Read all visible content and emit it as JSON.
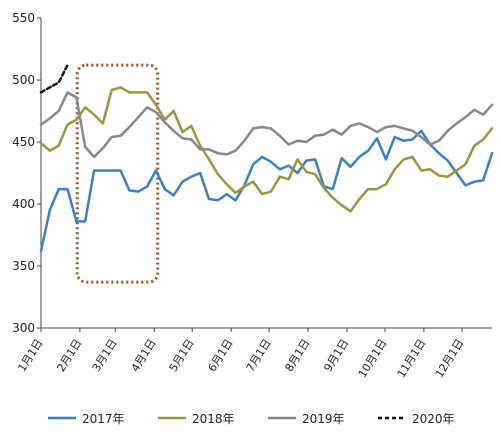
{
  "chart_data": {
    "type": "line",
    "title": "",
    "xlabel": "",
    "ylabel": "",
    "ylim": [
      300,
      550
    ],
    "yticks": [
      300,
      350,
      400,
      450,
      500,
      550
    ],
    "x_range": [
      1,
      52
    ],
    "x_ticks": [
      {
        "label": "1月1日",
        "week": 1
      },
      {
        "label": "2月1日",
        "week": 5.4
      },
      {
        "label": "3月1日",
        "week": 9.4
      },
      {
        "label": "4月1日",
        "week": 13.8
      },
      {
        "label": "5月1日",
        "week": 18.1
      },
      {
        "label": "6月1日",
        "week": 22.5
      },
      {
        "label": "7月1日",
        "week": 26.8
      },
      {
        "label": "8月1日",
        "week": 31.2
      },
      {
        "label": "9月1日",
        "week": 35.6
      },
      {
        "label": "10月1日",
        "week": 39.9
      },
      {
        "label": "11月1日",
        "week": 44.3
      },
      {
        "label": "12月1日",
        "week": 48.6
      }
    ],
    "grid": false,
    "legend": "bottom",
    "annotation": {
      "type": "dotted-rectangle",
      "x_range": [
        5.1,
        14.2
      ],
      "y_range": [
        337,
        512
      ],
      "color": "#a0521e"
    },
    "series": [
      {
        "name": "2017年",
        "color": "#3d7fc1",
        "dash": false,
        "x": [
          1,
          2,
          3,
          4,
          5,
          6,
          7,
          8,
          9,
          10,
          11,
          12,
          13,
          14,
          15,
          16,
          17,
          18,
          19,
          20,
          21,
          22,
          23,
          24,
          25,
          26,
          27,
          28,
          29,
          30,
          31,
          32,
          33,
          34,
          35,
          36,
          37,
          38,
          39,
          40,
          41,
          42,
          43,
          44,
          45,
          46,
          47,
          48,
          49,
          50,
          51,
          52
        ],
        "y": [
          362,
          395,
          412,
          412,
          386,
          386,
          427,
          427,
          427,
          427,
          411,
          410,
          414,
          427,
          412,
          407,
          418,
          422,
          425,
          404,
          403,
          408,
          403,
          415,
          432,
          438,
          434,
          428,
          431,
          425,
          435,
          436,
          414,
          412,
          437,
          430,
          438,
          443,
          453,
          436,
          454,
          451,
          452,
          459,
          448,
          441,
          435,
          425,
          415,
          418,
          419,
          441
        ]
      },
      {
        "name": "2018年",
        "color": "#9a9542",
        "dash": false,
        "x": [
          1,
          2,
          3,
          4,
          5,
          6,
          7,
          8,
          9,
          10,
          11,
          12,
          13,
          14,
          15,
          16,
          17,
          18,
          19,
          20,
          21,
          22,
          23,
          24,
          25,
          26,
          27,
          28,
          29,
          30,
          31,
          32,
          33,
          34,
          35,
          36,
          37,
          38,
          39,
          40,
          41,
          42,
          43,
          44,
          45,
          46,
          47,
          48,
          49,
          50,
          51,
          52
        ],
        "y": [
          449,
          443,
          447,
          464,
          468,
          478,
          472,
          465,
          492,
          494,
          490,
          490,
          490,
          480,
          468,
          475,
          458,
          463,
          447,
          436,
          424,
          416,
          409,
          414,
          418,
          408,
          410,
          422,
          420,
          436,
          426,
          424,
          413,
          405,
          399,
          394,
          404,
          412,
          412,
          416,
          428,
          436,
          438,
          427,
          428,
          423,
          422,
          427,
          432,
          447,
          452,
          461
        ]
      },
      {
        "name": "2019年",
        "color": "#878787",
        "dash": false,
        "x": [
          1,
          2,
          3,
          4,
          5,
          6,
          7,
          8,
          9,
          10,
          11,
          12,
          13,
          14,
          15,
          16,
          17,
          18,
          19,
          20,
          21,
          22,
          23,
          24,
          25,
          26,
          27,
          28,
          29,
          30,
          31,
          32,
          33,
          34,
          35,
          36,
          37,
          38,
          39,
          40,
          41,
          42,
          43,
          44,
          45,
          46,
          47,
          48,
          49,
          50,
          51,
          52
        ],
        "y": [
          464,
          469,
          475,
          490,
          486,
          446,
          438,
          445,
          454,
          455,
          462,
          470,
          478,
          474,
          466,
          459,
          453,
          452,
          444,
          444,
          441,
          440,
          443,
          451,
          461,
          462,
          461,
          455,
          448,
          451,
          450,
          455,
          456,
          460,
          456,
          463,
          465,
          462,
          458,
          462,
          463,
          461,
          459,
          454,
          448,
          451,
          459,
          465,
          470,
          476,
          472,
          480
        ]
      },
      {
        "name": "2020年",
        "color": "#111111",
        "dash": true,
        "x": [
          1,
          2,
          3,
          4
        ],
        "y": [
          490,
          494,
          498,
          512
        ]
      }
    ]
  }
}
